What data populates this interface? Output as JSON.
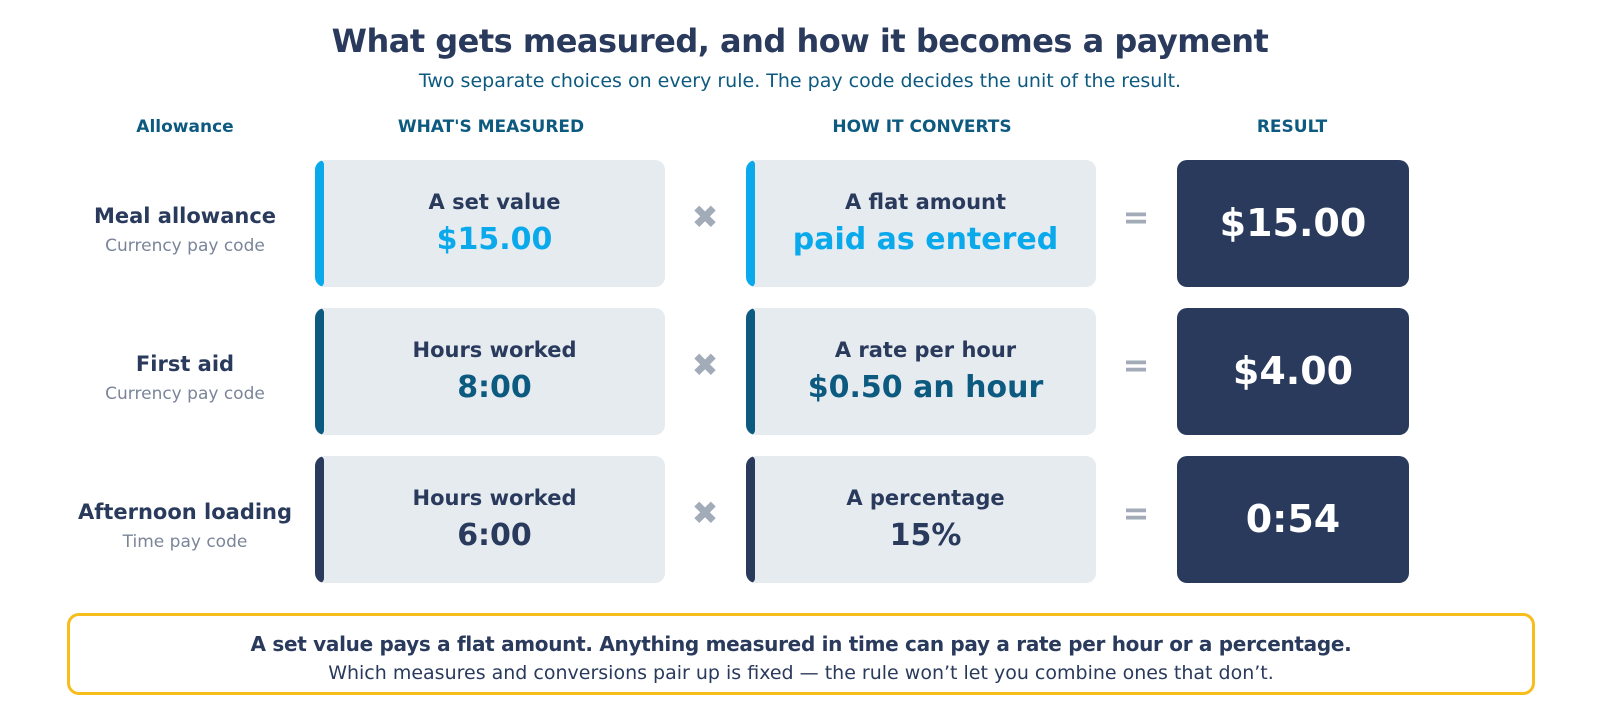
{
  "title": "What gets measured, and how it becomes a payment",
  "subtitle": "Two separate choices on every rule. The pay code decides the unit of the result.",
  "columns": {
    "allowance": "Allowance",
    "measured": "WHAT'S MEASURED",
    "converts": "HOW IT CONVERTS",
    "result": "RESULT"
  },
  "operators": {
    "times": "✖",
    "equals": "="
  },
  "rows": [
    {
      "name": "Meal allowance",
      "pay_code": "Currency pay code",
      "measured_label": "A set value",
      "measured_value": "$15.00",
      "convert_label": "A flat amount",
      "convert_value": "paid as entered",
      "result": "$15.00",
      "accent": "#0aa9ec"
    },
    {
      "name": "First aid",
      "pay_code": "Currency pay code",
      "measured_label": "Hours worked",
      "measured_value": "8:00",
      "convert_label": "A rate per hour",
      "convert_value": "$0.50 an hour",
      "result": "$4.00",
      "accent": "#0d5a80"
    },
    {
      "name": "Afternoon loading",
      "pay_code": "Time pay code",
      "measured_label": "Hours worked",
      "measured_value": "6:00",
      "convert_label": "A percentage",
      "convert_value": "15%",
      "result": "0:54",
      "accent": "#293a5c"
    }
  ],
  "note": {
    "bold": "A set value pays a flat amount. Anything measured in time can pay a rate per hour or a percentage.",
    "text": "Which measures and conversions pair up is fixed — the rule won’t let you combine ones that don’t."
  },
  "colors": {
    "navy": "#293a5c",
    "teal": "#0d5a80",
    "sky": "#0aa9ec",
    "card": "#e6ebf0",
    "highlight_border": "#f6bd1d",
    "operator": "#a2abb8"
  }
}
